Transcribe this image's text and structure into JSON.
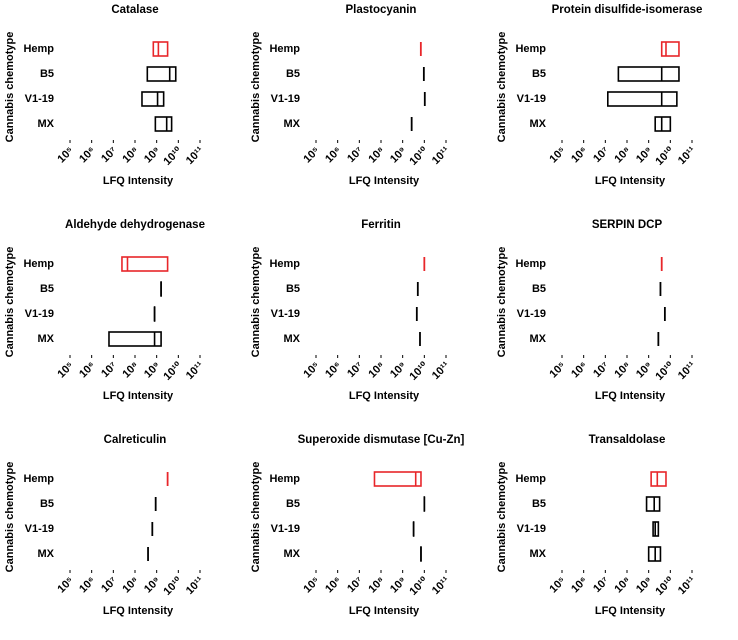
{
  "chart_data": [
    {
      "type": "floating-bar",
      "title": "Catalase",
      "x_label": "LFQ Intensity",
      "y_label": "Cannabis chemotype",
      "xscale": "log",
      "categories": [
        "Hemp",
        "B5",
        "V1-19",
        "MX"
      ],
      "colors": [
        "#e8262a",
        "#000000",
        "#000000",
        "#000000"
      ],
      "min": [
        700000000.0,
        370000000.0,
        210000000.0,
        870000000.0
      ],
      "median": [
        1200000000.0,
        4000000000.0,
        1100000000.0,
        2900000000.0
      ],
      "max": [
        3200000000.0,
        7600000000.0,
        2100000000.0,
        4900000000.0
      ],
      "xlim": [
        100000.0,
        100000000000.0
      ],
      "xticks": [
        {
          "value": 100000.0,
          "label": "10⁵"
        },
        {
          "value": 1000000.0,
          "label": "10⁶"
        },
        {
          "value": 10000000.0,
          "label": "10⁷"
        },
        {
          "value": 100000000.0,
          "label": "10⁸"
        },
        {
          "value": 1000000000.0,
          "label": "10⁹"
        },
        {
          "value": 10000000000.0,
          "label": "10¹⁰"
        },
        {
          "value": 100000000000.0,
          "label": "10¹¹"
        }
      ]
    },
    {
      "type": "tick",
      "title": "Plastocyanin",
      "x_label": "LFQ Intensity",
      "y_label": "Cannabis chemotype",
      "xscale": "log",
      "categories": [
        "Hemp",
        "B5",
        "V1-19",
        "MX"
      ],
      "colors": [
        "#e8262a",
        "#000000",
        "#000000",
        "#000000"
      ],
      "values": [
        6900000000.0,
        9500000000.0,
        10500000000.0,
        2600000000.0
      ],
      "xlim": [
        100000.0,
        100000000000.0
      ],
      "xticks": [
        {
          "value": 100000.0,
          "label": "10⁵"
        },
        {
          "value": 1000000.0,
          "label": "10⁶"
        },
        {
          "value": 10000000.0,
          "label": "10⁷"
        },
        {
          "value": 100000000.0,
          "label": "10⁸"
        },
        {
          "value": 1000000000.0,
          "label": "10⁹"
        },
        {
          "value": 10000000000.0,
          "label": "10¹⁰"
        },
        {
          "value": 100000000000.0,
          "label": "10¹¹"
        }
      ]
    },
    {
      "type": "floating-bar",
      "title": "Protein disulfide-isomerase",
      "x_label": "LFQ Intensity",
      "y_label": "Cannabis chemotype",
      "xscale": "log",
      "categories": [
        "Hemp",
        "B5",
        "V1-19",
        "MX"
      ],
      "colors": [
        "#e8262a",
        "#000000",
        "#000000",
        "#000000"
      ],
      "min": [
        4000000000.0,
        40000000.0,
        13000000.0,
        2000000000.0
      ],
      "median": [
        6300000000.0,
        4000000000.0,
        4000000000.0,
        4000000000.0
      ],
      "max": [
        25000000000.0,
        25000000000.0,
        20000000000.0,
        10000000000.0
      ],
      "xlim": [
        100000.0,
        100000000000.0
      ],
      "xticks": [
        {
          "value": 100000.0,
          "label": "10⁵"
        },
        {
          "value": 1000000.0,
          "label": "10⁶"
        },
        {
          "value": 10000000.0,
          "label": "10⁷"
        },
        {
          "value": 100000000.0,
          "label": "10⁸"
        },
        {
          "value": 1000000000.0,
          "label": "10⁹"
        },
        {
          "value": 10000000000.0,
          "label": "10¹⁰"
        },
        {
          "value": 100000000000.0,
          "label": "10¹¹"
        }
      ]
    },
    {
      "type": "floating-bar",
      "title": "Aldehyde dehydrogenase",
      "x_label": "LFQ Intensity",
      "y_label": "Cannabis chemotype",
      "xscale": "log",
      "categories": [
        "Hemp",
        "B5",
        "V1-19",
        "MX"
      ],
      "colors": [
        "#e8262a",
        "#000000",
        "#000000",
        "#000000"
      ],
      "min": [
        25000000.0,
        1600000000.0,
        800000000.0,
        6300000.0
      ],
      "median": [
        45000000.0,
        1600000000.0,
        800000000.0,
        800000000.0
      ],
      "max": [
        3200000000.0,
        1600000000.0,
        800000000.0,
        1600000000.0
      ],
      "xlim": [
        100000.0,
        100000000000.0
      ],
      "xticks": [
        {
          "value": 100000.0,
          "label": "10⁵"
        },
        {
          "value": 1000000.0,
          "label": "10⁶"
        },
        {
          "value": 10000000.0,
          "label": "10⁷"
        },
        {
          "value": 100000000.0,
          "label": "10⁸"
        },
        {
          "value": 1000000000.0,
          "label": "10⁹"
        },
        {
          "value": 10000000000.0,
          "label": "10¹⁰"
        },
        {
          "value": 100000000000.0,
          "label": "10¹¹"
        }
      ]
    },
    {
      "type": "tick",
      "title": "Ferritin",
      "x_label": "LFQ Intensity",
      "y_label": "Cannabis chemotype",
      "xscale": "log",
      "categories": [
        "Hemp",
        "B5",
        "V1-19",
        "MX"
      ],
      "colors": [
        "#e8262a",
        "#000000",
        "#000000",
        "#000000"
      ],
      "values": [
        10000000000.0,
        5000000000.0,
        4500000000.0,
        6300000000.0
      ],
      "xlim": [
        100000.0,
        100000000000.0
      ],
      "xticks": [
        {
          "value": 100000.0,
          "label": "10⁵"
        },
        {
          "value": 1000000.0,
          "label": "10⁶"
        },
        {
          "value": 10000000.0,
          "label": "10⁷"
        },
        {
          "value": 100000000.0,
          "label": "10⁸"
        },
        {
          "value": 1000000000.0,
          "label": "10⁹"
        },
        {
          "value": 10000000000.0,
          "label": "10¹⁰"
        },
        {
          "value": 100000000000.0,
          "label": "10¹¹"
        }
      ]
    },
    {
      "type": "tick",
      "title": "SERPIN DCP",
      "x_label": "LFQ Intensity",
      "y_label": "Cannabis chemotype",
      "xscale": "log",
      "categories": [
        "Hemp",
        "B5",
        "V1-19",
        "MX"
      ],
      "colors": [
        "#e8262a",
        "#000000",
        "#000000",
        "#000000"
      ],
      "values": [
        4000000000.0,
        3500000000.0,
        5600000000.0,
        2800000000.0
      ],
      "xlim": [
        100000.0,
        100000000000.0
      ],
      "xticks": [
        {
          "value": 100000.0,
          "label": "10⁵"
        },
        {
          "value": 1000000.0,
          "label": "10⁶"
        },
        {
          "value": 10000000.0,
          "label": "10⁷"
        },
        {
          "value": 100000000.0,
          "label": "10⁸"
        },
        {
          "value": 1000000000.0,
          "label": "10⁹"
        },
        {
          "value": 10000000000.0,
          "label": "10¹⁰"
        },
        {
          "value": 100000000000.0,
          "label": "10¹¹"
        }
      ]
    },
    {
      "type": "tick",
      "title": "Calreticulin",
      "x_label": "LFQ Intensity",
      "y_label": "Cannabis chemotype",
      "xscale": "log",
      "categories": [
        "Hemp",
        "B5",
        "V1-19",
        "MX"
      ],
      "colors": [
        "#e8262a",
        "#000000",
        "#000000",
        "#000000"
      ],
      "values": [
        3200000000.0,
        900000000.0,
        630000000.0,
        400000000.0
      ],
      "xlim": [
        100000.0,
        100000000000.0
      ],
      "xticks": [
        {
          "value": 100000.0,
          "label": "10⁵"
        },
        {
          "value": 1000000.0,
          "label": "10⁶"
        },
        {
          "value": 10000000.0,
          "label": "10⁷"
        },
        {
          "value": 100000000.0,
          "label": "10⁸"
        },
        {
          "value": 1000000000.0,
          "label": "10⁹"
        },
        {
          "value": 10000000000.0,
          "label": "10¹⁰"
        },
        {
          "value": 100000000000.0,
          "label": "10¹¹"
        }
      ]
    },
    {
      "type": "floating-bar",
      "title": "Superoxide dismutase [Cu-Zn]",
      "x_label": "LFQ Intensity",
      "y_label": "Cannabis chemotype",
      "xscale": "log",
      "categories": [
        "Hemp",
        "B5",
        "V1-19",
        "MX"
      ],
      "colors": [
        "#e8262a",
        "#000000",
        "#000000",
        "#000000"
      ],
      "min": [
        50000000.0,
        10000000000.0,
        3200000000.0,
        7000000000.0
      ],
      "median": [
        4000000000.0,
        10000000000.0,
        3200000000.0,
        7000000000.0
      ],
      "max": [
        7000000000.0,
        10000000000.0,
        3200000000.0,
        7000000000.0
      ],
      "xlim": [
        100000.0,
        100000000000.0
      ],
      "xticks": [
        {
          "value": 100000.0,
          "label": "10⁵"
        },
        {
          "value": 1000000.0,
          "label": "10⁶"
        },
        {
          "value": 10000000.0,
          "label": "10⁷"
        },
        {
          "value": 100000000.0,
          "label": "10⁸"
        },
        {
          "value": 1000000000.0,
          "label": "10⁹"
        },
        {
          "value": 10000000000.0,
          "label": "10¹⁰"
        },
        {
          "value": 100000000000.0,
          "label": "10¹¹"
        }
      ]
    },
    {
      "type": "floating-bar",
      "title": "Transaldolase",
      "x_label": "LFQ Intensity",
      "y_label": "Cannabis chemotype",
      "xscale": "log",
      "categories": [
        "Hemp",
        "B5",
        "V1-19",
        "MX"
      ],
      "colors": [
        "#e8262a",
        "#000000",
        "#000000",
        "#000000"
      ],
      "min": [
        1300000000.0,
        800000000.0,
        1600000000.0,
        1000000000.0
      ],
      "median": [
        2500000000.0,
        1800000000.0,
        2000000000.0,
        2000000000.0
      ],
      "max": [
        6300000000.0,
        3200000000.0,
        2800000000.0,
        3500000000.0
      ],
      "xlim": [
        100000.0,
        100000000000.0
      ],
      "xticks": [
        {
          "value": 100000.0,
          "label": "10⁵"
        },
        {
          "value": 1000000.0,
          "label": "10⁶"
        },
        {
          "value": 10000000.0,
          "label": "10⁷"
        },
        {
          "value": 100000000.0,
          "label": "10⁸"
        },
        {
          "value": 1000000000.0,
          "label": "10⁹"
        },
        {
          "value": 10000000000.0,
          "label": "10¹⁰"
        },
        {
          "value": 100000000000.0,
          "label": "10¹¹"
        }
      ]
    }
  ]
}
